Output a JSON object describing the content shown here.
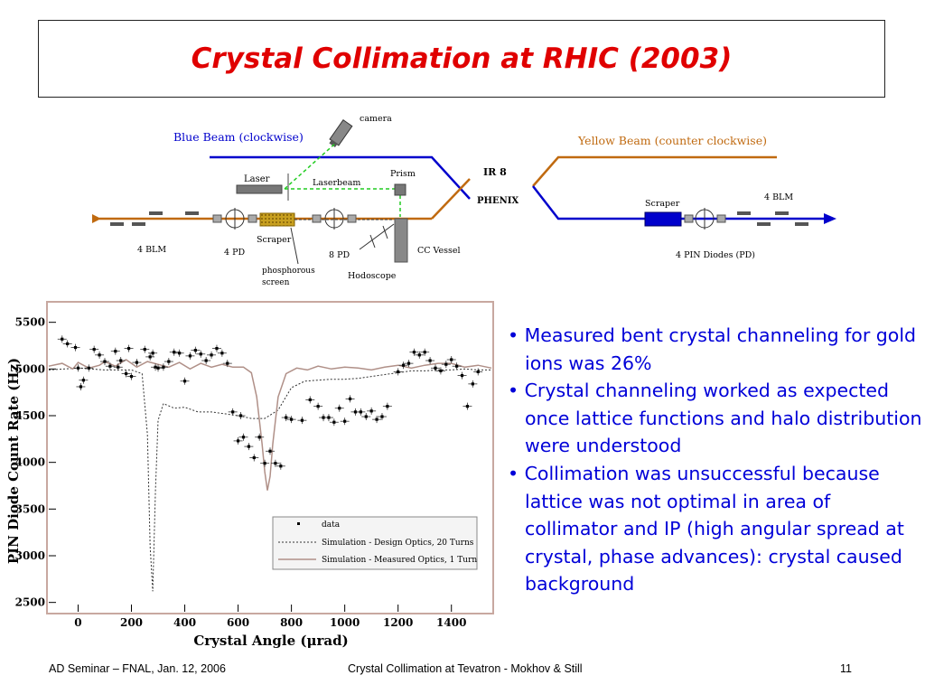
{
  "slide": {
    "title": "Crystal Collimation at RHIC (2003)",
    "bullets": [
      "• Measured bent crystal channeling for gold ions was 26%",
      "• Crystal channeling worked as expected once lattice functions and halo distribution were understood",
      "• Collimation was unsuccessful because lattice was not optimal in area of collimator and IP (high angular spread at crystal, phase advances): crystal caused background"
    ],
    "footer": {
      "left": "AD Seminar – FNAL, Jan. 12, 2006",
      "center": "Crystal Collimation at Tevatron -  Mokhov & Still",
      "page": "11"
    }
  },
  "diagram": {
    "blue_beam": "Blue Beam (clockwise)",
    "yellow_beam": "Yellow Beam (counter clockwise)",
    "camera": "camera",
    "laser": "Laser",
    "laserbeam": "Laserbeam",
    "prism": "Prism",
    "ir": "IR 8",
    "phenix": "PHENIX",
    "scraper_left": "Scraper",
    "scraper_right": "Scraper",
    "blm_left": "4 BLM",
    "blm_right": "4 BLM",
    "pd4": "4 PD",
    "pd8": "8 PD",
    "phosphorous_1": "phosphorous",
    "phosphorous_2": "screen",
    "hodoscope": "Hodoscope",
    "cc_vessel": "CC Vessel",
    "pin_diodes": "4 PIN Diodes (PD)",
    "colors": {
      "blue": "#0000cc",
      "yellow": "#c06a10",
      "laser": "#22cc22"
    }
  },
  "chart_data": {
    "type": "scatter",
    "xlabel": "Crystal Angle (μrad)",
    "ylabel": "PIN Diode Count Rate (Hz)",
    "xlim": [
      -110,
      1550
    ],
    "ylim": [
      2400,
      5700
    ],
    "x_ticks": [
      "0",
      "200",
      "400",
      "600",
      "800",
      "1000",
      "1200",
      "1400"
    ],
    "y_ticks": [
      "2500",
      "3000",
      "3500",
      "4000",
      "4500",
      "5000",
      "5500"
    ],
    "legend_position": "bottom-right",
    "series": [
      {
        "name": "data",
        "style": "points",
        "x": [
          -60,
          -40,
          -10,
          0,
          10,
          20,
          40,
          60,
          80,
          100,
          120,
          140,
          150,
          160,
          180,
          190,
          200,
          220,
          250,
          270,
          280,
          290,
          300,
          320,
          340,
          360,
          380,
          400,
          420,
          440,
          460,
          480,
          500,
          520,
          540,
          560,
          580,
          600,
          610,
          620,
          640,
          660,
          680,
          700,
          720,
          740,
          760,
          780,
          800,
          840,
          870,
          900,
          920,
          940,
          960,
          980,
          1000,
          1020,
          1040,
          1060,
          1080,
          1100,
          1120,
          1140,
          1160,
          1200,
          1220,
          1240,
          1260,
          1280,
          1300,
          1320,
          1340,
          1360,
          1380,
          1400,
          1420,
          1440,
          1460,
          1480,
          1500
        ],
        "y": [
          5320,
          5270,
          5230,
          5010,
          4810,
          4880,
          5010,
          5210,
          5150,
          5080,
          5030,
          5190,
          5020,
          5090,
          4950,
          5220,
          4920,
          5070,
          5210,
          5130,
          5170,
          5020,
          5010,
          5020,
          5080,
          5180,
          5170,
          4870,
          5140,
          5200,
          5160,
          5090,
          5150,
          5220,
          5170,
          5060,
          4540,
          4230,
          4500,
          4270,
          4170,
          4050,
          4270,
          3990,
          4120,
          3990,
          3960,
          4480,
          4460,
          4450,
          4670,
          4600,
          4480,
          4480,
          4430,
          4580,
          4440,
          4680,
          4540,
          4540,
          4490,
          4550,
          4460,
          4490,
          4600,
          4970,
          5040,
          5060,
          5180,
          5150,
          5180,
          5090,
          5010,
          4980,
          5050,
          5100,
          5030,
          4930,
          4600,
          4840,
          4970
        ]
      },
      {
        "name": "Simulation - Design Optics, 20 Turns",
        "style": "dotted",
        "x": [
          -110,
          0,
          100,
          200,
          240,
          260,
          270,
          280,
          290,
          300,
          320,
          360,
          400,
          450,
          500,
          550,
          600,
          650,
          700,
          750,
          800,
          850,
          900,
          950,
          1000,
          1050,
          1100,
          1150,
          1200,
          1250,
          1300,
          1350,
          1400,
          1450,
          1500,
          1550
        ],
        "y": [
          4990,
          5010,
          4990,
          4990,
          4950,
          4300,
          3100,
          2620,
          3700,
          4450,
          4630,
          4580,
          4590,
          4540,
          4540,
          4520,
          4500,
          4470,
          4470,
          4560,
          4800,
          4870,
          4880,
          4890,
          4890,
          4900,
          4920,
          4940,
          4960,
          4980,
          4980,
          4990,
          4990,
          5000,
          4990,
          4990
        ]
      },
      {
        "name": "Simulation - Measured Optics, 1 Turn",
        "style": "solid",
        "x": [
          -110,
          -60,
          -20,
          0,
          40,
          80,
          100,
          140,
          180,
          220,
          260,
          300,
          340,
          380,
          420,
          460,
          500,
          540,
          580,
          620,
          650,
          670,
          690,
          700,
          710,
          720,
          730,
          750,
          780,
          820,
          860,
          900,
          950,
          1000,
          1050,
          1100,
          1150,
          1200,
          1250,
          1300,
          1350,
          1400,
          1450,
          1500,
          1550
        ],
        "y": [
          5030,
          5060,
          5000,
          5070,
          5010,
          5040,
          5080,
          5030,
          5100,
          5020,
          5080,
          5050,
          5020,
          5070,
          5000,
          5060,
          5020,
          5050,
          5020,
          5020,
          4960,
          4700,
          4200,
          3900,
          3700,
          3850,
          4200,
          4700,
          4950,
          5010,
          4990,
          5030,
          5000,
          5020,
          5010,
          4990,
          5020,
          5040,
          5010,
          5040,
          5060,
          5060,
          5020,
          5040,
          5010
        ]
      }
    ]
  }
}
